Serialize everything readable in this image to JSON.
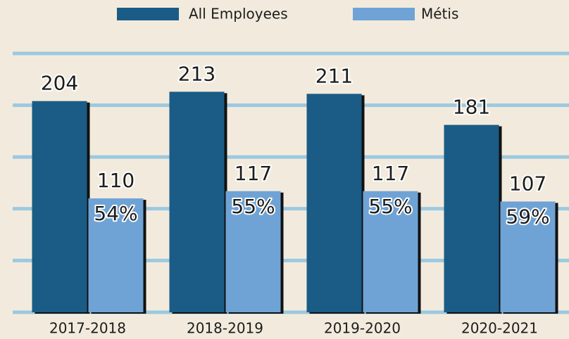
{
  "chart_data": {
    "type": "bar",
    "categories": [
      "2017-2018",
      "2018-2019",
      "2019-2020",
      "2020-2021"
    ],
    "series": [
      {
        "name": "All Employees",
        "color": "#1a5c85",
        "values": [
          204,
          213,
          211,
          181
        ]
      },
      {
        "name": "Métis",
        "color": "#6fa3d6",
        "values": [
          110,
          117,
          117,
          107
        ],
        "percent_labels": [
          "54%",
          "55%",
          "55%",
          "59%"
        ]
      }
    ],
    "ylim": [
      0,
      250
    ],
    "yticks": [
      0,
      50,
      100,
      150,
      200,
      250
    ],
    "grid": true,
    "legend": "top"
  }
}
